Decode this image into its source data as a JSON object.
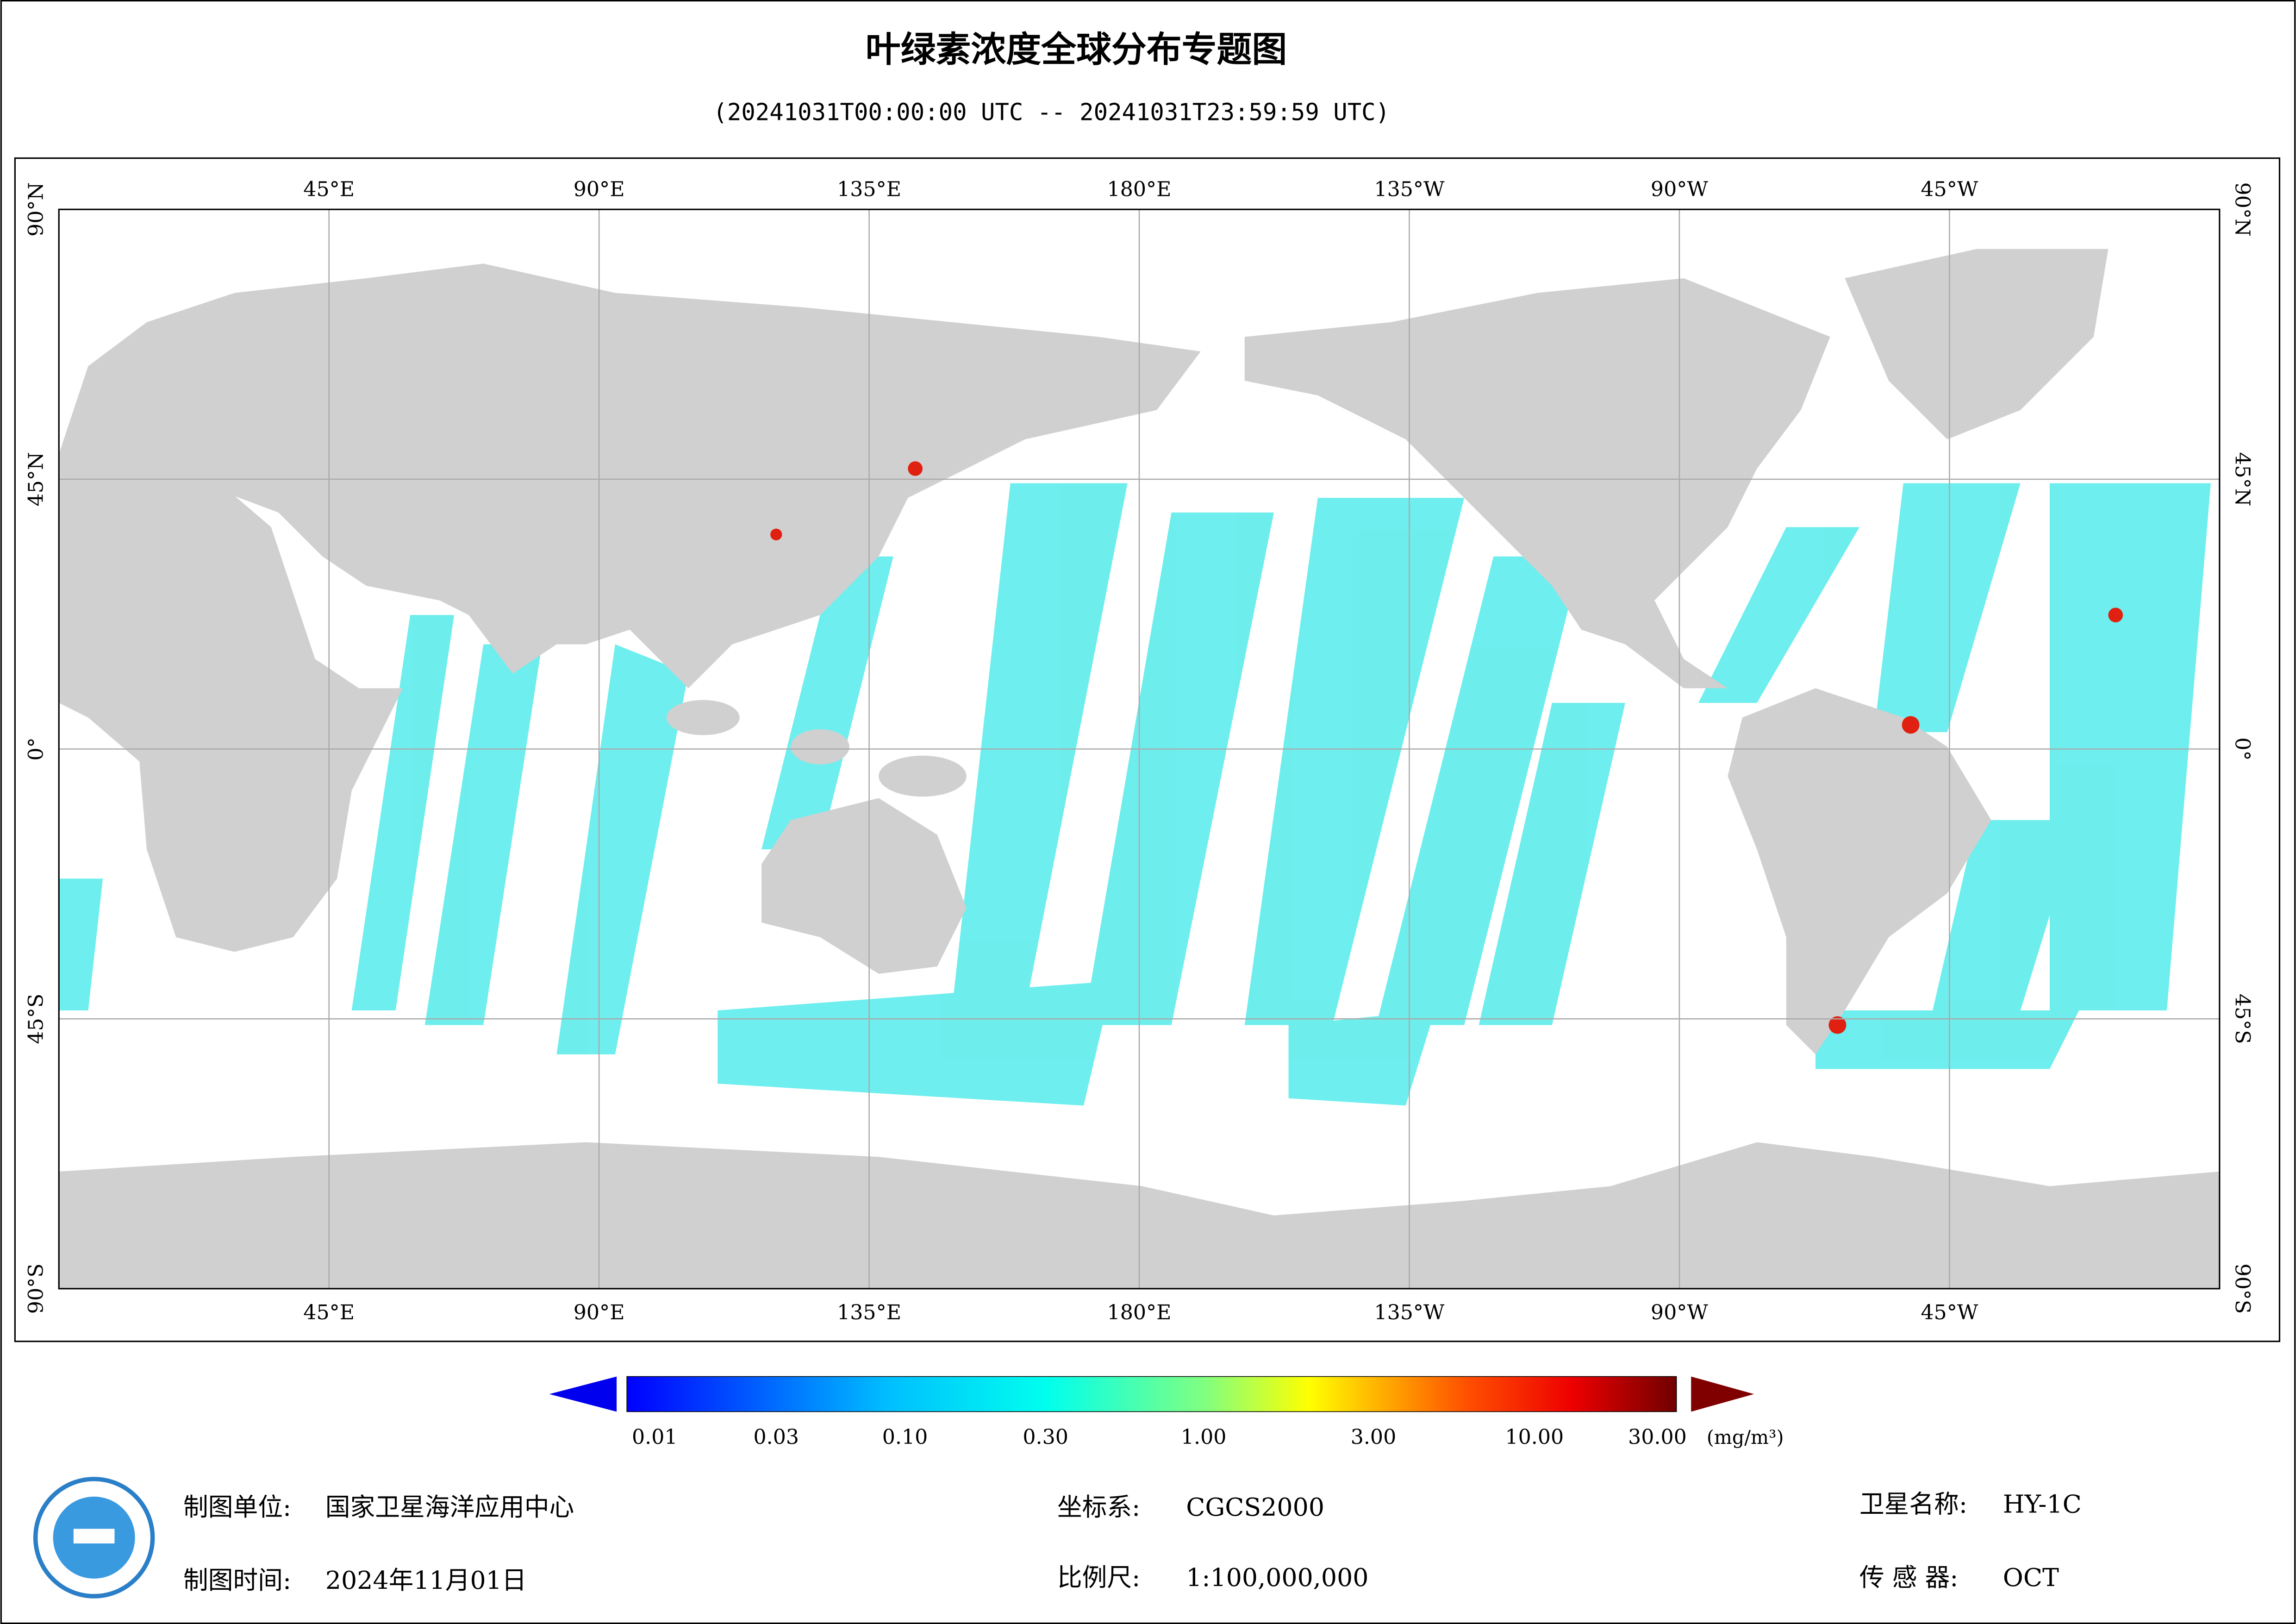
{
  "header": {
    "title": "叶绿素浓度全球分布专题图",
    "subtitle": "(20241031T00:00:00 UTC -- 20241031T23:59:59 UTC)"
  },
  "map": {
    "lon_labels": [
      "45°E",
      "90°E",
      "135°E",
      "180°E",
      "135°W",
      "90°W",
      "45°W"
    ],
    "lat_labels": [
      "90°N",
      "45°N",
      "0°",
      "45°S",
      "90°S"
    ]
  },
  "colorbar": {
    "labels": [
      "0.01",
      "0.03",
      "0.10",
      "0.30",
      "1.00",
      "3.00",
      "10.00",
      "30.00"
    ],
    "unit": "(mg/m³)"
  },
  "footer": {
    "unit_label": "制图单位:",
    "unit": "国家卫星海洋应用中心",
    "time_label": "制图时间:",
    "time": "2024年11月01日",
    "crs_label": "坐标系:",
    "crs": "CGCS2000",
    "scale_label": "比例尺:",
    "scale": "1:100,000,000",
    "sat_label": "卫星名称:",
    "sat": "HY-1C",
    "sensor_label": "传 感 器:",
    "sensor": "OCT"
  }
}
